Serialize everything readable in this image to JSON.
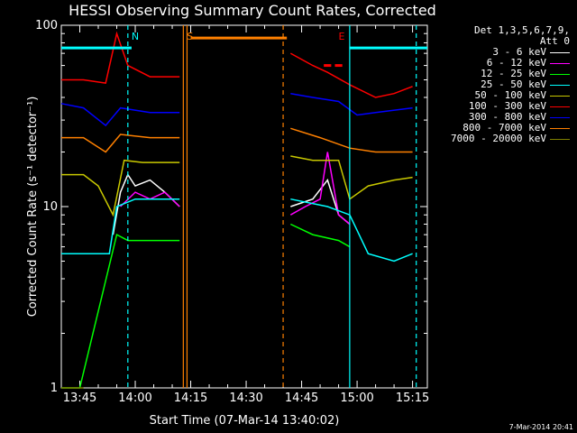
{
  "title": "HESSI Observing Summary Count Rates, Corrected",
  "legend": {
    "header_line1": "Det 1,3,5,6,7,9,",
    "header_line2": "Att 0",
    "entries": [
      {
        "label": "3 - 6 keV",
        "color": "#000000"
      },
      {
        "label": "6 - 12 keV",
        "color": "#ff00ff"
      },
      {
        "label": "12 - 25 keV",
        "color": "#00ff00"
      },
      {
        "label": "25 - 50 keV",
        "color": "#00ffff"
      },
      {
        "label": "50 - 100 keV",
        "color": "#c8c800"
      },
      {
        "label": "100 - 300 keV",
        "color": "#ff0000"
      },
      {
        "label": "300 - 800 keV",
        "color": "#0000ff"
      },
      {
        "label": "800 - 7000 keV",
        "color": "#ff8000"
      },
      {
        "label": "7000 - 20000 keV",
        "color": "#808000"
      }
    ]
  },
  "timestamp": "7-Mar-2014 20:41",
  "chart_data": {
    "type": "line",
    "title": "HESSI Observing Summary Count Rates, Corrected",
    "xlabel": "Start Time (07-Mar-14 13:40:02)",
    "ylabel": "Corrected Count Rate (s⁻¹ detector⁻¹)",
    "yscale": "log",
    "ylim": [
      1,
      100
    ],
    "xlim": [
      "13:40",
      "15:19"
    ],
    "y_ticks": [
      "1",
      "10",
      "100"
    ],
    "x_ticks": [
      "13:45",
      "14:00",
      "14:15",
      "14:30",
      "14:45",
      "15:00",
      "15:15"
    ],
    "grid": false,
    "legend_position": "right",
    "annotations": [
      {
        "text": "N",
        "time": "13:58",
        "color": "#00ffff"
      },
      {
        "text": "S",
        "time": "14:13",
        "color": "#ff8000"
      },
      {
        "text": "E",
        "time": "14:54",
        "color": "#ff0000"
      }
    ],
    "markers": [
      {
        "time": "13:58",
        "style": "dashed",
        "color": "#00ffff"
      },
      {
        "time": "14:13",
        "style": "solid",
        "color": "#ff8000"
      },
      {
        "time": "14:14",
        "style": "solid",
        "color": "#ff8000"
      },
      {
        "time": "14:40",
        "style": "dashed",
        "color": "#ff8000"
      },
      {
        "time": "14:58",
        "style": "solid",
        "color": "#00ffff"
      },
      {
        "time": "15:16",
        "style": "dashed",
        "color": "#00ffff"
      }
    ],
    "status_bars": [
      {
        "name": "night",
        "color": "#00ffff",
        "y": 75,
        "segments": [
          [
            "13:40",
            "13:59"
          ],
          [
            "14:58",
            "15:19"
          ]
        ]
      },
      {
        "name": "saa",
        "color": "#ff8000",
        "y": 85,
        "segments": [
          [
            "14:15",
            "14:41"
          ]
        ]
      },
      {
        "name": "flare",
        "color": "#ff0000",
        "y": 60,
        "segments": [
          [
            "14:51",
            "14:53"
          ],
          [
            "14:54",
            "14:56"
          ]
        ]
      }
    ],
    "gaps": [
      [
        "14:13",
        "14:41"
      ]
    ],
    "series": [
      {
        "name": "3 - 6 keV",
        "color": "#000000",
        "points": [
          [
            "13:54",
            7
          ],
          [
            "13:56",
            12
          ],
          [
            "13:58",
            15
          ],
          [
            "14:00",
            13
          ],
          [
            "14:04",
            14
          ],
          [
            "14:08",
            12
          ],
          [
            "14:12",
            10
          ],
          [
            "14:42",
            10
          ],
          [
            "14:48",
            11
          ],
          [
            "14:52",
            14
          ],
          [
            "14:55",
            9
          ],
          [
            "14:58",
            8
          ]
        ]
      },
      {
        "name": "6 - 12 keV",
        "color": "#ff00ff",
        "points": [
          [
            "13:56",
            10
          ],
          [
            "14:00",
            12
          ],
          [
            "14:04",
            11
          ],
          [
            "14:08",
            12
          ],
          [
            "14:12",
            10
          ],
          [
            "14:42",
            9
          ],
          [
            "14:46",
            10
          ],
          [
            "14:50",
            11
          ],
          [
            "14:52",
            20
          ],
          [
            "14:55",
            9
          ],
          [
            "14:58",
            8
          ]
        ]
      },
      {
        "name": "12 - 25 keV",
        "color": "#00ff00",
        "points": [
          [
            "13:40",
            1
          ],
          [
            "13:45",
            1
          ],
          [
            "13:55",
            7
          ],
          [
            "13:58",
            6.5
          ],
          [
            "14:05",
            6.5
          ],
          [
            "14:12",
            6.5
          ],
          [
            "14:42",
            8
          ],
          [
            "14:48",
            7
          ],
          [
            "14:55",
            6.5
          ],
          [
            "14:58",
            6
          ]
        ]
      },
      {
        "name": "25 - 50 keV",
        "color": "#00ffff",
        "points": [
          [
            "13:40",
            5.5
          ],
          [
            "13:44",
            5.5
          ],
          [
            "13:48",
            5.5
          ],
          [
            "13:53",
            5.5
          ],
          [
            "13:55",
            10
          ],
          [
            "14:00",
            11
          ],
          [
            "14:12",
            11
          ],
          [
            "14:42",
            11
          ],
          [
            "14:52",
            10
          ],
          [
            "14:58",
            9
          ],
          [
            "15:03",
            5.5
          ],
          [
            "15:10",
            5
          ],
          [
            "15:15",
            5.5
          ]
        ]
      },
      {
        "name": "50 - 100 keV",
        "color": "#c8c800",
        "points": [
          [
            "13:40",
            15
          ],
          [
            "13:46",
            15
          ],
          [
            "13:50",
            13
          ],
          [
            "13:54",
            9
          ],
          [
            "13:57",
            18
          ],
          [
            "14:02",
            17.5
          ],
          [
            "14:08",
            17.5
          ],
          [
            "14:12",
            17.5
          ],
          [
            "14:42",
            19
          ],
          [
            "14:48",
            18
          ],
          [
            "14:55",
            18
          ],
          [
            "14:58",
            11
          ],
          [
            "15:03",
            13
          ],
          [
            "15:10",
            14
          ],
          [
            "15:15",
            14.5
          ]
        ]
      },
      {
        "name": "100 - 300 keV",
        "color": "#ff0000",
        "points": [
          [
            "13:40",
            50
          ],
          [
            "13:46",
            50
          ],
          [
            "13:52",
            48
          ],
          [
            "13:55",
            90
          ],
          [
            "13:58",
            60
          ],
          [
            "14:04",
            52
          ],
          [
            "14:12",
            52
          ],
          [
            "14:42",
            70
          ],
          [
            "14:48",
            60
          ],
          [
            "14:52",
            55
          ],
          [
            "14:58",
            47
          ],
          [
            "15:05",
            40
          ],
          [
            "15:10",
            42
          ],
          [
            "15:15",
            46
          ]
        ]
      },
      {
        "name": "300 - 800 keV",
        "color": "#0000ff",
        "points": [
          [
            "13:40",
            37
          ],
          [
            "13:46",
            35
          ],
          [
            "13:52",
            28
          ],
          [
            "13:56",
            35
          ],
          [
            "14:04",
            33
          ],
          [
            "14:12",
            33
          ],
          [
            "14:42",
            42
          ],
          [
            "14:48",
            40
          ],
          [
            "14:55",
            38
          ],
          [
            "15:00",
            32
          ],
          [
            "15:05",
            33
          ],
          [
            "15:15",
            35
          ]
        ]
      },
      {
        "name": "800 - 7000 keV",
        "color": "#ff8000",
        "points": [
          [
            "13:40",
            24
          ],
          [
            "13:46",
            24
          ],
          [
            "13:52",
            20
          ],
          [
            "13:56",
            25
          ],
          [
            "14:04",
            24
          ],
          [
            "14:12",
            24
          ],
          [
            "14:42",
            27
          ],
          [
            "14:50",
            24
          ],
          [
            "14:58",
            21
          ],
          [
            "15:05",
            20
          ],
          [
            "15:15",
            20
          ]
        ]
      },
      {
        "name": "7000 - 20000 keV",
        "color": "#808000",
        "points": [
          [
            "13:40",
            1
          ],
          [
            "13:46",
            1
          ]
        ]
      }
    ]
  }
}
